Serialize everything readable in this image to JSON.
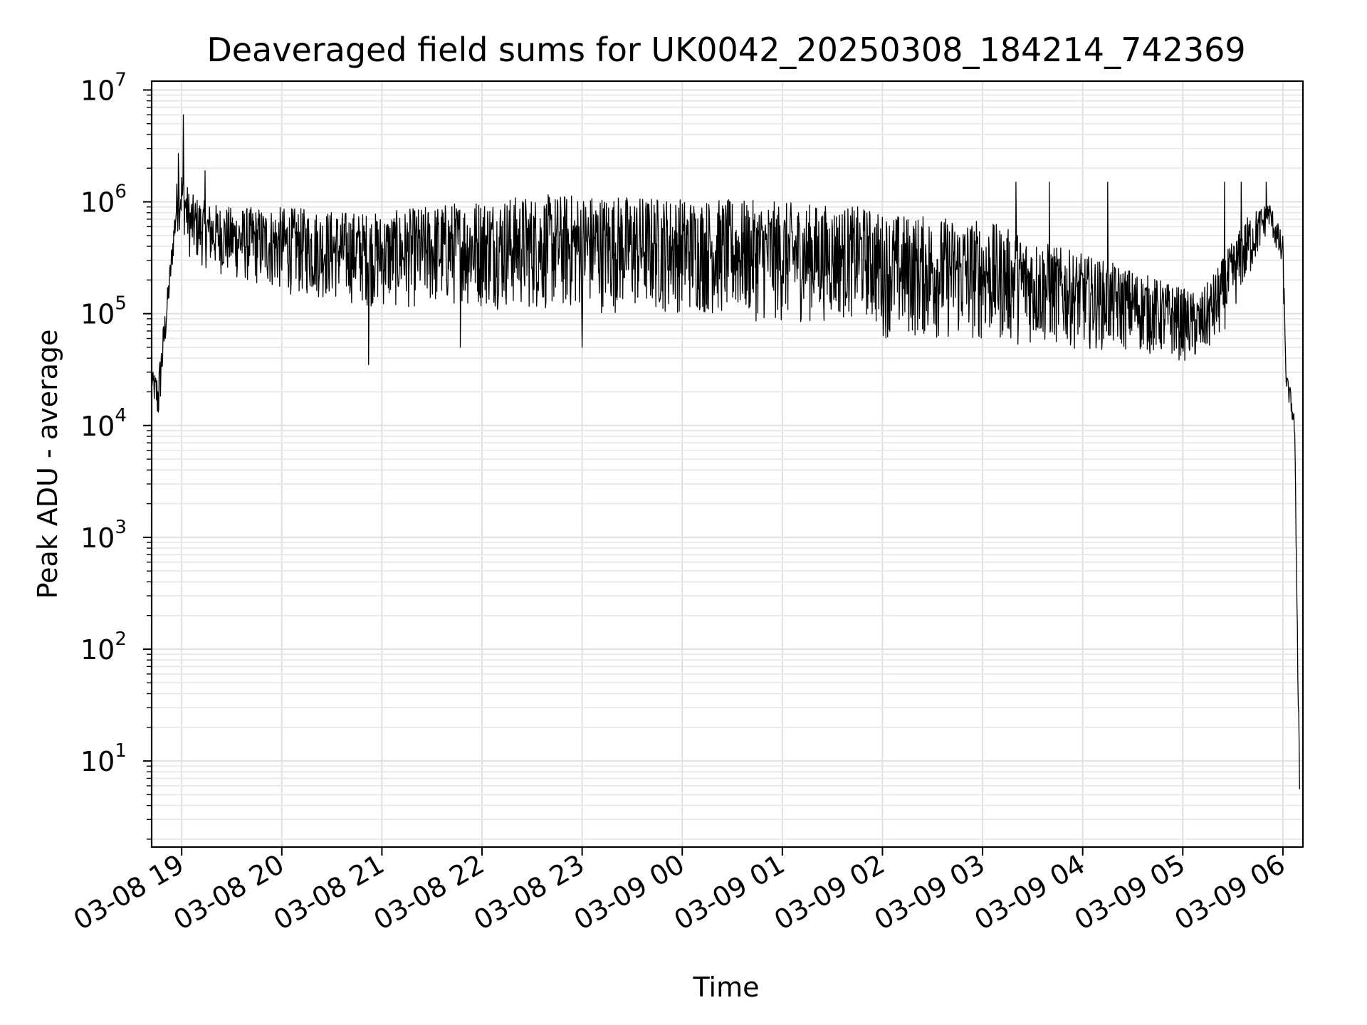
{
  "chart_data": {
    "type": "line",
    "title": "Deaveraged field sums for UK0042_20250308_184214_742369",
    "xlabel": "Time",
    "ylabel": "Peak ADU - average",
    "yscale": "log",
    "ylim": [
      1.7,
      12000000
    ],
    "xlim": [
      "2025-03-08 18:42",
      "2025-03-09 06:12"
    ],
    "grid": true,
    "x_tick_labels": [
      "03-08 19",
      "03-08 20",
      "03-08 21",
      "03-08 22",
      "03-08 23",
      "03-09 00",
      "03-09 01",
      "03-09 02",
      "03-09 03",
      "03-09 04",
      "03-09 05",
      "03-09 06"
    ],
    "y_tick_labels": [
      {
        "base": "10",
        "exp": "1"
      },
      {
        "base": "10",
        "exp": "2"
      },
      {
        "base": "10",
        "exp": "3"
      },
      {
        "base": "10",
        "exp": "4"
      },
      {
        "base": "10",
        "exp": "5"
      },
      {
        "base": "10",
        "exp": "6"
      },
      {
        "base": "10",
        "exp": "7"
      }
    ],
    "line_color": "#000000",
    "series": [
      {
        "envelope": [
          {
            "x": "2025-03-08 18:42",
            "low": 20000,
            "high": 30000
          },
          {
            "x": "2025-03-08 18:46",
            "low": 9000,
            "high": 30000
          },
          {
            "x": "2025-03-08 18:48",
            "low": 20000,
            "high": 60000
          },
          {
            "x": "2025-03-08 18:52",
            "low": 100000,
            "high": 200000
          },
          {
            "x": "2025-03-08 18:55",
            "low": 300000,
            "high": 600000
          },
          {
            "x": "2025-03-08 18:57",
            "low": 500000,
            "high": 1500000
          },
          {
            "x": "2025-03-08 19:00",
            "low": 600000,
            "high": 2000000
          },
          {
            "x": "2025-03-08 19:05",
            "low": 300000,
            "high": 1200000
          },
          {
            "x": "2025-03-08 19:15",
            "low": 250000,
            "high": 1000000
          },
          {
            "x": "2025-03-08 19:30",
            "low": 200000,
            "high": 900000
          },
          {
            "x": "2025-03-08 20:00",
            "low": 150000,
            "high": 900000
          },
          {
            "x": "2025-03-08 21:00",
            "low": 110000,
            "high": 800000
          },
          {
            "x": "2025-03-08 22:00",
            "low": 110000,
            "high": 1100000
          },
          {
            "x": "2025-03-08 23:00",
            "low": 100000,
            "high": 1200000
          },
          {
            "x": "2025-03-09 00:00",
            "low": 100000,
            "high": 1100000
          },
          {
            "x": "2025-03-09 01:00",
            "low": 80000,
            "high": 1000000
          },
          {
            "x": "2025-03-09 01:50",
            "low": 90000,
            "high": 900000
          },
          {
            "x": "2025-03-09 02:00",
            "low": 60000,
            "high": 800000
          },
          {
            "x": "2025-03-09 03:00",
            "low": 55000,
            "high": 700000
          },
          {
            "x": "2025-03-09 03:45",
            "low": 50000,
            "high": 400000
          },
          {
            "x": "2025-03-09 04:30",
            "low": 45000,
            "high": 250000
          },
          {
            "x": "2025-03-09 05:10",
            "low": 35000,
            "high": 150000
          },
          {
            "x": "2025-03-09 05:20",
            "low": 50000,
            "high": 250000
          },
          {
            "x": "2025-03-09 05:40",
            "low": 200000,
            "high": 800000
          },
          {
            "x": "2025-03-09 05:52",
            "low": 600000,
            "high": 1000000
          },
          {
            "x": "2025-03-09 06:00",
            "low": 200000,
            "high": 500000
          },
          {
            "x": "2025-03-09 06:02",
            "low": 20000,
            "high": 30000
          },
          {
            "x": "2025-03-09 06:05",
            "low": 12000,
            "high": 20000
          },
          {
            "x": "2025-03-09 06:07",
            "low": 7000,
            "high": 12000
          },
          {
            "x": "2025-03-09 06:10",
            "low": 3.5,
            "high": 10
          }
        ],
        "spikes": [
          {
            "x": "2025-03-08 18:58",
            "value": 2700000
          },
          {
            "x": "2025-03-08 19:01",
            "value": 6000000
          },
          {
            "x": "2025-03-08 19:14",
            "value": 1900000
          },
          {
            "x": "2025-03-08 20:52",
            "value": 35000
          },
          {
            "x": "2025-03-08 21:47",
            "value": 50000
          },
          {
            "x": "2025-03-08 23:00",
            "value": 50000
          },
          {
            "x": "2025-03-09 03:20",
            "value": 1500000
          },
          {
            "x": "2025-03-09 03:40",
            "value": 1500000
          },
          {
            "x": "2025-03-09 04:15",
            "value": 1500000
          },
          {
            "x": "2025-03-09 05:25",
            "value": 1500000
          },
          {
            "x": "2025-03-09 05:35",
            "value": 1500000
          },
          {
            "x": "2025-03-09 05:50",
            "value": 1500000
          }
        ]
      }
    ]
  }
}
